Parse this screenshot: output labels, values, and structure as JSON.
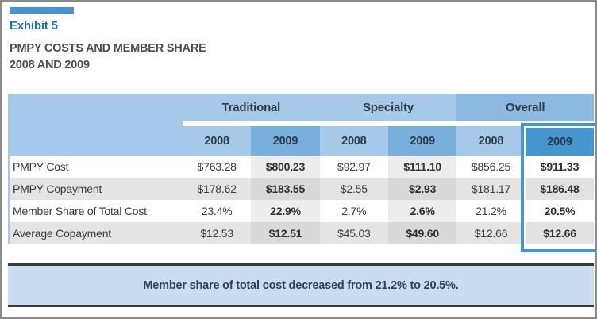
{
  "header": {
    "exhibit_label": "Exhibit 5",
    "subtitle_line1": "PMPY COSTS AND MEMBER SHARE",
    "subtitle_line2": "2008 AND 2009"
  },
  "table": {
    "groups": [
      {
        "label": "Traditional"
      },
      {
        "label": "Specialty"
      },
      {
        "label": "Overall"
      }
    ],
    "year_headers": [
      "2008",
      "2009",
      "2008",
      "2009",
      "2008",
      "2009"
    ],
    "rows": [
      {
        "label": "PMPY Cost",
        "values": [
          "$763.28",
          "$800.23",
          "$92.97",
          "$111.10",
          "$856.25",
          "$911.33"
        ]
      },
      {
        "label": "PMPY Copayment",
        "values": [
          "$178.62",
          "$183.55",
          "$2.55",
          "$2.93",
          "$181.17",
          "$186.48"
        ]
      },
      {
        "label": "Member Share of Total Cost",
        "values": [
          "23.4%",
          "22.9%",
          "2.7%",
          "2.6%",
          "21.2%",
          "20.5%"
        ]
      },
      {
        "label": "Average Copayment",
        "values": [
          "$12.53",
          "$12.51",
          "$45.03",
          "$49.60",
          "$12.66",
          "$12.66"
        ]
      }
    ],
    "highlighted_column": {
      "group": "Overall",
      "year": "2009"
    }
  },
  "footer": {
    "note": "Member share of total cost decreased from 21.2% to 20.5%."
  },
  "colors": {
    "accent_blue": "#4695cf",
    "header_light_blue": "#a6c9e9",
    "overall_group_blue": "#8db8e0",
    "year_2009_blue": "#79afdb",
    "footer_band_blue": "#c9dcf2",
    "exhibit_title_blue": "#1f6fb9",
    "stripe_gray": "#e4e4e4",
    "rule_dark": "#3a3a3a"
  }
}
